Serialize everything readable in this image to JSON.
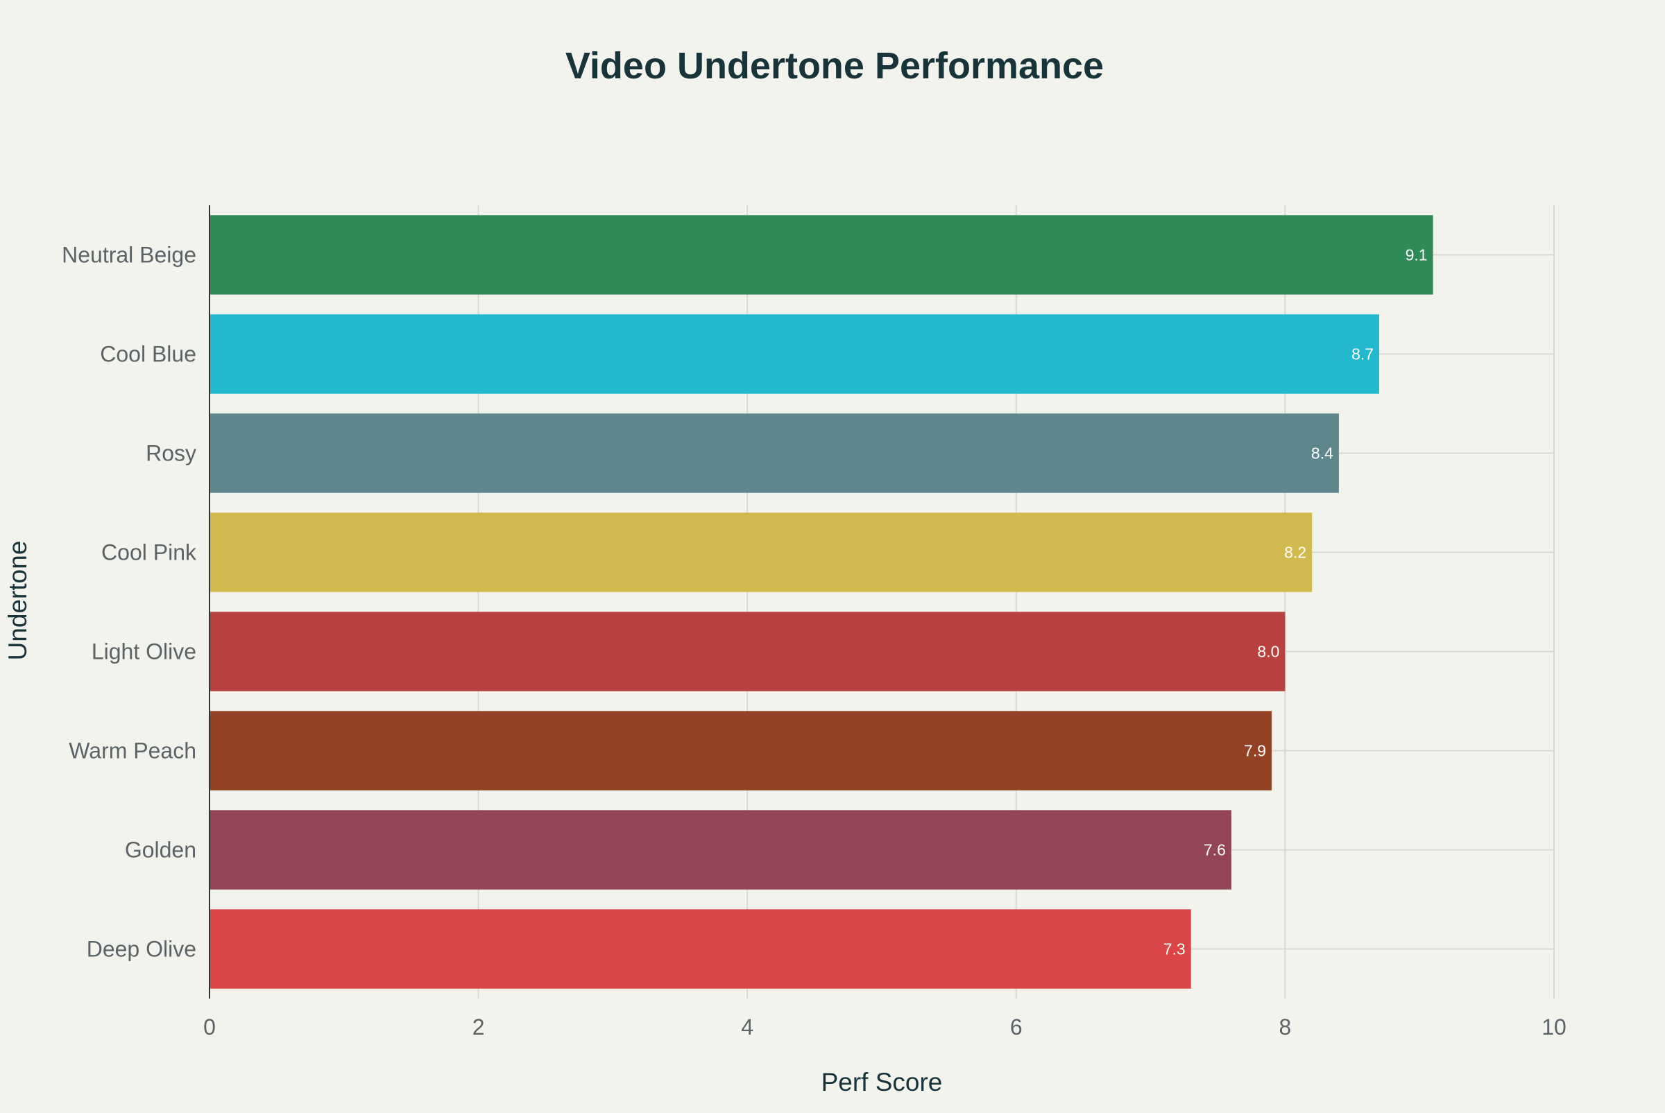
{
  "chart_data": {
    "type": "bar",
    "orientation": "horizontal",
    "title": "Video Undertone Performance",
    "xlabel": "Perf Score",
    "ylabel": "Undertone",
    "xlim": [
      0,
      10
    ],
    "xticks": [
      "0",
      "2",
      "4",
      "6",
      "8",
      "10"
    ],
    "grid": true,
    "categories": [
      "Neutral Beige",
      "Cool Blue",
      "Rosy",
      "Cool Pink",
      "Light Olive",
      "Warm Peach",
      "Golden",
      "Deep Olive"
    ],
    "values": [
      9.1,
      8.7,
      8.4,
      8.2,
      8.0,
      7.9,
      7.6,
      7.3
    ],
    "value_labels": [
      "9.1",
      "8.7",
      "8.4",
      "8.2",
      "8.0",
      "7.9",
      "7.6",
      "7.3"
    ],
    "colors": [
      "#2e8b57",
      "#22b8cd",
      "#5e878d",
      "#d2b94d",
      "#b8403f",
      "#934225",
      "#934556",
      "#db4545"
    ]
  }
}
